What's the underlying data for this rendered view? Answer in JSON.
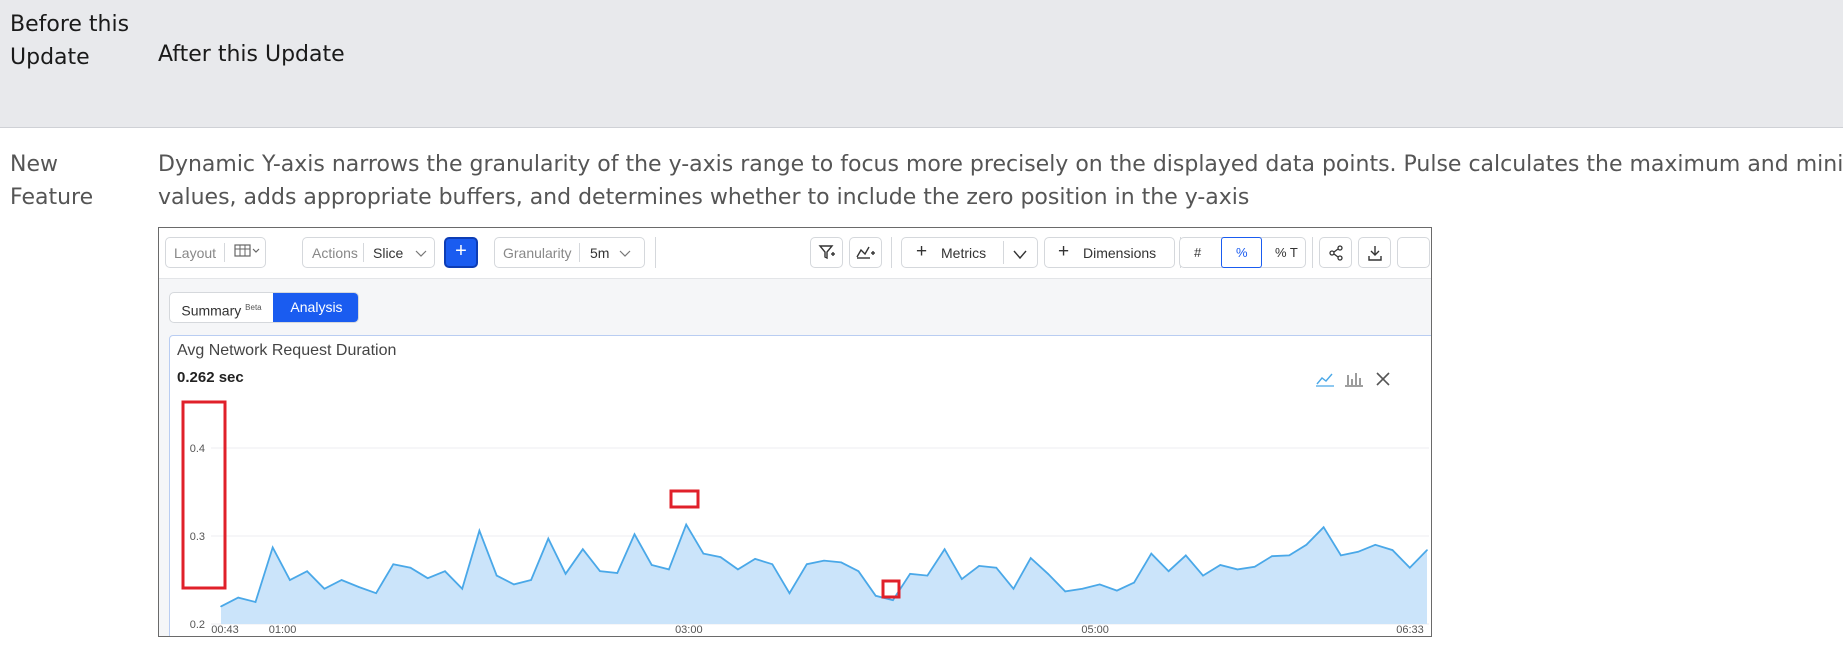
{
  "table": {
    "header": {
      "col1": "Before this Update",
      "col2": "After this Update"
    },
    "row": {
      "label": "New Feature",
      "description_line1": "Dynamic Y-axis narrows the granularity of the y-axis range to focus more precisely on the displayed data points. Pulse calculates the maximum and minimum",
      "description_line2": "values, adds appropriate buffers, and determines whether to include the zero position in the y-axis"
    }
  },
  "toolbar": {
    "layout_label": "Layout",
    "actions_label": "Actions",
    "slice_label": "Slice",
    "add_glyph": "+",
    "granularity_label": "Granularity",
    "granularity_value": "5m",
    "metrics_label": "Metrics",
    "dimensions_label": "Dimensions",
    "count_toggle": "#",
    "percent_toggle": "%",
    "percent_total_toggle": "% T"
  },
  "tabs": {
    "summary": "Summary",
    "summary_badge": "Beta",
    "analysis": "Analysis"
  },
  "card": {
    "title": "Avg Network Request Duration",
    "value": "0.262 sec"
  },
  "colors": {
    "accent": "#1a5cf0",
    "line": "#4aa8e8",
    "area": "#cbe4fa",
    "highlight": "#e0202a"
  },
  "chart_data": {
    "type": "area",
    "x_ticks": [
      "00:43",
      "01:00",
      "03:00",
      "05:00",
      "06:33"
    ],
    "y_ticks": [
      "0.2",
      "0.3",
      "0.4"
    ],
    "ylim": [
      0.2,
      0.4
    ],
    "grid": true,
    "series": [
      {
        "values": [
          0.22,
          0.23,
          0.225,
          0.287,
          0.25,
          0.26,
          0.24,
          0.25,
          0.242,
          0.235,
          0.268,
          0.264,
          0.252,
          0.26,
          0.24,
          0.306,
          0.255,
          0.245,
          0.25,
          0.297,
          0.257,
          0.285,
          0.26,
          0.258,
          0.302,
          0.267,
          0.262,
          0.313,
          0.28,
          0.276,
          0.262,
          0.274,
          0.268,
          0.235,
          0.268,
          0.272,
          0.27,
          0.26,
          0.232,
          0.227,
          0.257,
          0.255,
          0.285,
          0.251,
          0.266,
          0.264,
          0.24,
          0.275,
          0.257,
          0.237,
          0.24,
          0.245,
          0.238,
          0.247,
          0.28,
          0.26,
          0.278,
          0.255,
          0.267,
          0.262,
          0.265,
          0.277,
          0.278,
          0.29,
          0.31,
          0.278,
          0.282,
          0.29,
          0.284,
          0.264,
          0.284
        ]
      }
    ]
  }
}
